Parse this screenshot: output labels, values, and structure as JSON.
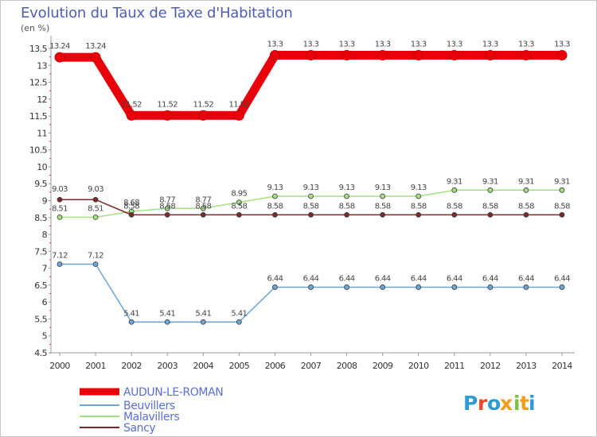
{
  "chart_data": {
    "type": "line",
    "title": "Evolution du Taux de Taxe d'Habitation",
    "ylabel": "(en %)",
    "xlabel": "",
    "ylim": [
      4.5,
      13.5
    ],
    "ytick_step": 0.5,
    "ytick_labels": [
      "4.5",
      "5",
      "5.5",
      "6",
      "6.5",
      "7",
      "7.5",
      "8",
      "8.5",
      "9",
      "9.5",
      "10",
      "10.5",
      "11",
      "11.5",
      "12",
      "12.5",
      "13",
      "13.5"
    ],
    "x": [
      "2000",
      "2001",
      "2002",
      "2003",
      "2004",
      "2005",
      "2006",
      "2007",
      "2008",
      "2009",
      "2010",
      "2011",
      "2012",
      "2013",
      "2014"
    ],
    "series": [
      {
        "name": "AUDUN-LE-ROMAN",
        "color": "#e8000b",
        "values": [
          13.24,
          13.24,
          11.52,
          11.52,
          11.52,
          11.52,
          13.3,
          13.3,
          13.3,
          13.3,
          13.3,
          13.3,
          13.3,
          13.3,
          13.3
        ],
        "labels": [
          "13.24",
          "13.24",
          "11.52",
          "11.52",
          "11.52",
          "11.52",
          "13.3",
          "13.3",
          "13.3",
          "13.3",
          "13.3",
          "13.3",
          "13.3",
          "13.3",
          "13.3"
        ]
      },
      {
        "name": "Beuvillers",
        "color": "#6fa6d6",
        "values": [
          7.12,
          7.12,
          5.41,
          5.41,
          5.41,
          5.41,
          6.44,
          6.44,
          6.44,
          6.44,
          6.44,
          6.44,
          6.44,
          6.44,
          6.44
        ],
        "labels": [
          "7.12",
          "7.12",
          "5.41",
          "5.41",
          "5.41",
          "5.41",
          "6.44",
          "6.44",
          "6.44",
          "6.44",
          "6.44",
          "6.44",
          "6.44",
          "6.44",
          "6.44"
        ]
      },
      {
        "name": "Malavillers",
        "color": "#a6de83",
        "values": [
          8.51,
          8.51,
          8.68,
          8.77,
          8.77,
          8.95,
          9.13,
          9.13,
          9.13,
          9.13,
          9.13,
          9.31,
          9.31,
          9.31,
          9.31
        ],
        "labels": [
          "8.51",
          "8.51",
          "8.68",
          "8.77",
          "8.77",
          "8.95",
          "9.13",
          "9.13",
          "9.13",
          "9.13",
          "9.13",
          "9.31",
          "9.31",
          "9.31",
          "9.31"
        ]
      },
      {
        "name": "Sancy",
        "color": "#7a2a2a",
        "values": [
          9.03,
          9.03,
          8.58,
          8.58,
          8.58,
          8.58,
          8.58,
          8.58,
          8.58,
          8.58,
          8.58,
          8.58,
          8.58,
          8.58,
          8.58
        ],
        "labels": [
          "9.03",
          "9.03",
          "8.58",
          "8.58",
          "8.58",
          "8.58",
          "8.58",
          "8.58",
          "8.58",
          "8.58",
          "8.58",
          "8.58",
          "8.58",
          "8.58",
          "8.58"
        ]
      }
    ],
    "grid": false,
    "legend": "bottom-left"
  },
  "logo": {
    "text": "Proxiti",
    "colors": [
      "#2e9ad6",
      "#e84a2c",
      "#2e9ad6",
      "#f39c1b",
      "#7cc243",
      "#f39c1b",
      "#2e9ad6"
    ]
  }
}
